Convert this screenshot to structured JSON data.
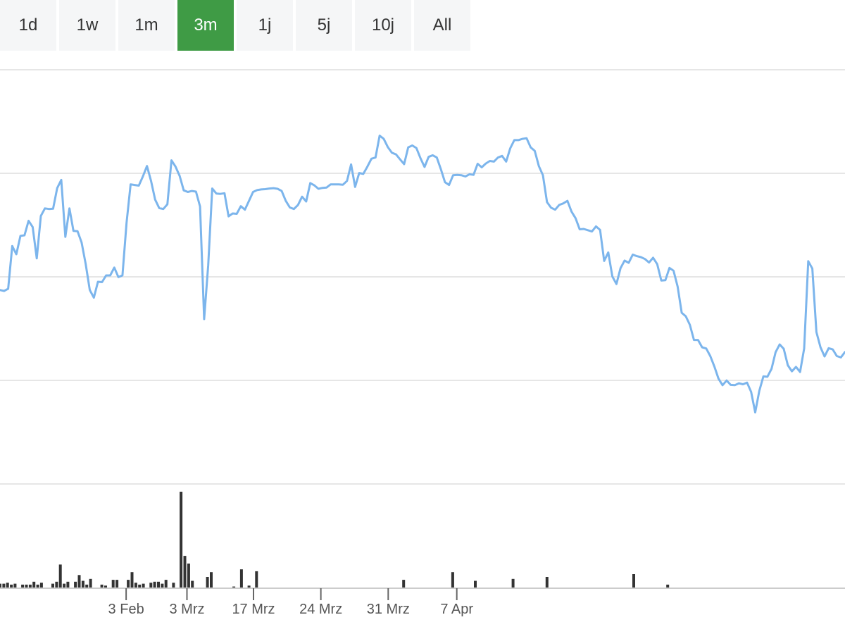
{
  "range_selector": {
    "tabs": [
      "1d",
      "1w",
      "1m",
      "3m",
      "1j",
      "5j",
      "10j",
      "All"
    ],
    "active_index": 3
  },
  "colors": {
    "accent": "#3f9b45",
    "line": "#7cb5ec",
    "volume": "#333333",
    "grid": "#e6e6e6",
    "tab_background": "#f5f6f7"
  },
  "chart_data": {
    "type": "line",
    "x_axis": {
      "tick_labels": [
        "3 Feb",
        "3 Mrz",
        "17 Mrz",
        "24 Mrz",
        "31 Mrz",
        "7 Apr"
      ],
      "tick_positions": [
        30.9,
        45.8,
        62.1,
        78.6,
        95.1,
        111.9
      ]
    },
    "price_panel": {
      "y_labels_shown": false,
      "gridlines": 5,
      "values": [
        48.4,
        48.1,
        48.8,
        62.3,
        59.7,
        65.5,
        65.7,
        70.3,
        68.3,
        58.4,
        71.8,
        74.2,
        74.0,
        74.1,
        80.6,
        83.2,
        65.2,
        74.2,
        67.1,
        67.0,
        63.4,
        56.6,
        48.4,
        46.0,
        51.0,
        50.9,
        53.0,
        53.0,
        55.5,
        52.5,
        53.0,
        69.6,
        81.8,
        81.6,
        81.4,
        84.3,
        87.6,
        82.9,
        77.0,
        74.3,
        74.0,
        75.5,
        89.4,
        87.4,
        84.5,
        79.9,
        79.4,
        79.7,
        79.5,
        74.8,
        39.2,
        56.3,
        80.5,
        78.9,
        78.8,
        79.0,
        71.7,
        72.6,
        72.5,
        74.9,
        73.8,
        76.6,
        79.4,
        80.0,
        80.2,
        80.3,
        80.5,
        80.6,
        80.4,
        79.7,
        76.6,
        74.5,
        74.0,
        75.3,
        77.9,
        76.4,
        82.2,
        81.5,
        80.4,
        80.7,
        80.8,
        81.8,
        81.8,
        81.8,
        81.7,
        82.9,
        88.1,
        81.0,
        85.4,
        85.1,
        87.4,
        89.9,
        90.3,
        97.2,
        96.2,
        93.6,
        91.8,
        91.3,
        89.7,
        88.2,
        93.5,
        94.1,
        93.3,
        90.1,
        87.3,
        90.5,
        91.0,
        90.3,
        86.6,
        82.5,
        81.6,
        84.7,
        84.8,
        84.7,
        84.3,
        85.0,
        84.8,
        88.3,
        87.2,
        88.4,
        89.2,
        89.0,
        90.3,
        90.8,
        89.0,
        93.2,
        95.8,
        95.8,
        96.2,
        96.4,
        93.5,
        92.4,
        87.6,
        84.7,
        76.2,
        74.4,
        73.8,
        75.3,
        75.8,
        76.6,
        73.2,
        71.1,
        67.6,
        67.7,
        67.3,
        66.9,
        68.5,
        67.4,
        57.6,
        60.3,
        52.7,
        50.3,
        55.3,
        57.7,
        57.0,
        59.6,
        59.1,
        58.8,
        58.2,
        57.1,
        58.6,
        56.6,
        51.4,
        51.5,
        55.4,
        54.5,
        49.5,
        41.2,
        40.1,
        37.4,
        32.6,
        32.6,
        30.3,
        29.9,
        27.5,
        24.2,
        20.4,
        18.3,
        19.8,
        18.4,
        18.3,
        18.9,
        18.6,
        19.1,
        16.2,
        9.7,
        16.5,
        21.1,
        21.0,
        23.5,
        28.7,
        31.2,
        29.8,
        24.6,
        22.7,
        24.1,
        22.5,
        29.9,
        57.5,
        55.2,
        35.1,
        30.3,
        27.4,
        30.0,
        29.6,
        27.5,
        27.1,
        28.8
      ]
    },
    "volume_panel": {
      "values": [
        4,
        4,
        5,
        3,
        4,
        0,
        3,
        3,
        3,
        6,
        3,
        5,
        0,
        0,
        4,
        6,
        24,
        4,
        6,
        0,
        6,
        13,
        7,
        3,
        9,
        0,
        0,
        3,
        2,
        0,
        8,
        8,
        0,
        0,
        8,
        16,
        5,
        3,
        4,
        0,
        5,
        6,
        6,
        4,
        8,
        0,
        5,
        0,
        100,
        33,
        25,
        7,
        0,
        0,
        0,
        11,
        16,
        0,
        0,
        0,
        0,
        0,
        1,
        0,
        19,
        0,
        2,
        0,
        17,
        0,
        0,
        0,
        0,
        0,
        0,
        0,
        0,
        0,
        0,
        0,
        0,
        0,
        0,
        0,
        0,
        0,
        0,
        0,
        0,
        0,
        0,
        0,
        0,
        0,
        0,
        0,
        0,
        0,
        0,
        0,
        0,
        0,
        0,
        0,
        0,
        0,
        0,
        8,
        0,
        0,
        0,
        0,
        0,
        0,
        0,
        0,
        0,
        0,
        0,
        0,
        16,
        0,
        0,
        0,
        0,
        0,
        7,
        0,
        0,
        0,
        0,
        0,
        0,
        0,
        0,
        0,
        9,
        0,
        0,
        0,
        0,
        0,
        0,
        0,
        0,
        11,
        0,
        0,
        0,
        0,
        0,
        0,
        0,
        0,
        0,
        0,
        0,
        0,
        0,
        0,
        0,
        0,
        0,
        0,
        0,
        0,
        0,
        0,
        14,
        0,
        0,
        0,
        0,
        0,
        0,
        0,
        0,
        3,
        0,
        0,
        0,
        0,
        0,
        0,
        0,
        0,
        0,
        0,
        0,
        0,
        0,
        0,
        0,
        0,
        0,
        0,
        0,
        0,
        0,
        0,
        0,
        0,
        0,
        0,
        0,
        0,
        0,
        0,
        0,
        0,
        0,
        0,
        0,
        0,
        0,
        0,
        0,
        0,
        0,
        0,
        0,
        0,
        0,
        0,
        0
      ]
    }
  }
}
